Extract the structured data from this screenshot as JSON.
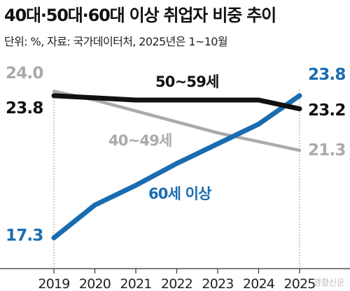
{
  "header": {
    "title": "40대·50대·60대 이상 취업자 비중 추이",
    "subtitle": "단위: %, 자료: 국가데이터처, 2025년은 1~10월"
  },
  "watermark": "경향신문",
  "colors": {
    "series_40s": "#aaaaaa",
    "series_50s": "#111111",
    "series_60s": "#1a6cb0",
    "axis": "#333333",
    "guide": "#999999"
  },
  "chart_data": {
    "type": "line",
    "x": [
      "2019",
      "2020",
      "2021",
      "2022",
      "2023",
      "2024",
      "2025"
    ],
    "series": [
      {
        "name": "50~59세",
        "values": [
          23.8,
          23.7,
          23.6,
          23.6,
          23.6,
          23.6,
          23.2
        ],
        "start_label": "23.8",
        "end_label": "23.2"
      },
      {
        "name": "40~49세",
        "values": [
          24.0,
          23.6,
          23.1,
          22.6,
          22.1,
          21.7,
          21.3
        ],
        "start_label": "24.0",
        "end_label": "21.3"
      },
      {
        "name": "60세 이상",
        "values": [
          17.3,
          18.8,
          19.7,
          20.7,
          21.6,
          22.5,
          23.8
        ],
        "start_label": "17.3",
        "end_label": "23.8"
      }
    ],
    "ylim": [
      17.0,
      24.4
    ],
    "grid": false,
    "legend": "inline labels"
  }
}
